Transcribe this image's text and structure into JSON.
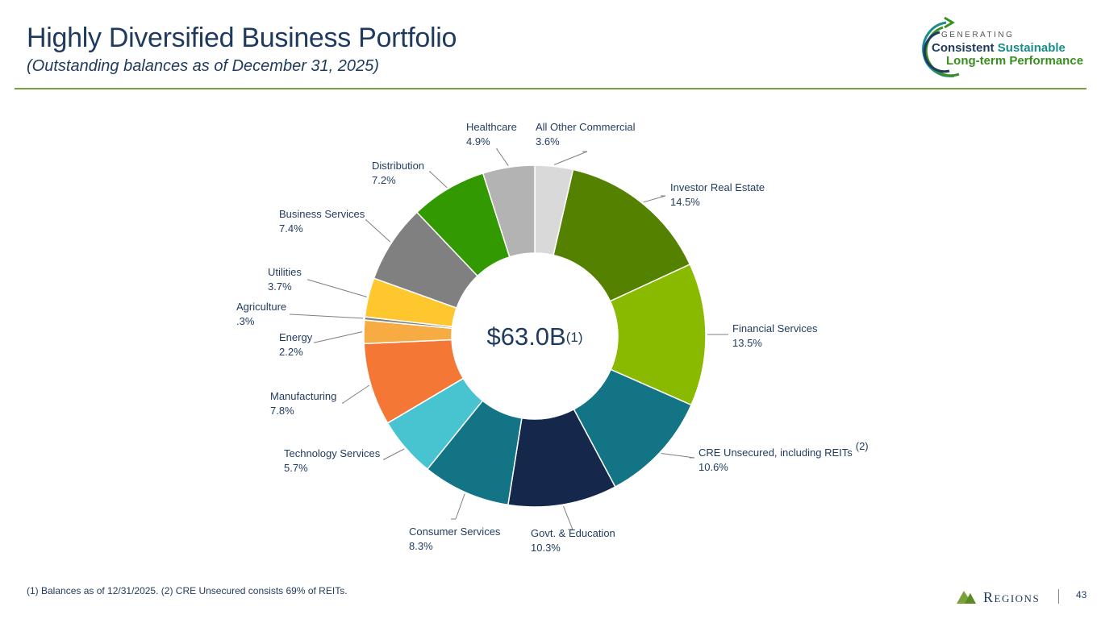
{
  "header": {
    "title": "Highly Diversified Business Portfolio",
    "subtitle": "(Outstanding balances as of December 31, 2025)"
  },
  "logo": {
    "generating": "GENERATING",
    "line1_a": "Consistent",
    "line1_b": "Sustainable",
    "line2": "Long-term Performance"
  },
  "chart_data": {
    "type": "pie",
    "donut": true,
    "center_label": "$63.0B",
    "center_superscript": "(1)",
    "slices": [
      {
        "label": "All Other Commercial",
        "value_label": "3.6%",
        "value": 3.6,
        "color": "#d9d9d9"
      },
      {
        "label": "Investor Real Estate",
        "value_label": "14.5%",
        "value": 14.5,
        "color": "#548200"
      },
      {
        "label": "Financial Services",
        "value_label": "13.5%",
        "value": 13.5,
        "color": "#8aba00"
      },
      {
        "label": "CRE Unsecured, including REITs",
        "value_label": "10.6%",
        "value": 10.6,
        "color": "#127485",
        "superscript": "(2)"
      },
      {
        "label": "Govt. & Education",
        "value_label": "10.3%",
        "value": 10.3,
        "color": "#15284b"
      },
      {
        "label": "Consumer Services",
        "value_label": "8.3%",
        "value": 8.3,
        "color": "#127485"
      },
      {
        "label": "Technology Services",
        "value_label": "5.7%",
        "value": 5.7,
        "color": "#48c4d1"
      },
      {
        "label": "Manufacturing",
        "value_label": "7.8%",
        "value": 7.8,
        "color": "#f47735"
      },
      {
        "label": "Energy",
        "value_label": "2.2%",
        "value": 2.2,
        "color": "#f6ac43"
      },
      {
        "label": "Agriculture",
        "value_label": ".3%",
        "value": 0.3,
        "color": "#7f7f7f"
      },
      {
        "label": "Utilities",
        "value_label": "3.7%",
        "value": 3.7,
        "color": "#fec72e"
      },
      {
        "label": "Business Services",
        "value_label": "7.4%",
        "value": 7.4,
        "color": "#808080"
      },
      {
        "label": "Distribution",
        "value_label": "7.2%",
        "value": 7.2,
        "color": "#339900"
      },
      {
        "label": "Healthcare",
        "value_label": "4.9%",
        "value": 4.9,
        "color": "#b3b3b3"
      }
    ]
  },
  "footnote": "(1) Balances as of 12/31/2025. (2) CRE Unsecured consists 69% of REITs.",
  "brand": {
    "name": "Regions",
    "page_number": "43"
  }
}
